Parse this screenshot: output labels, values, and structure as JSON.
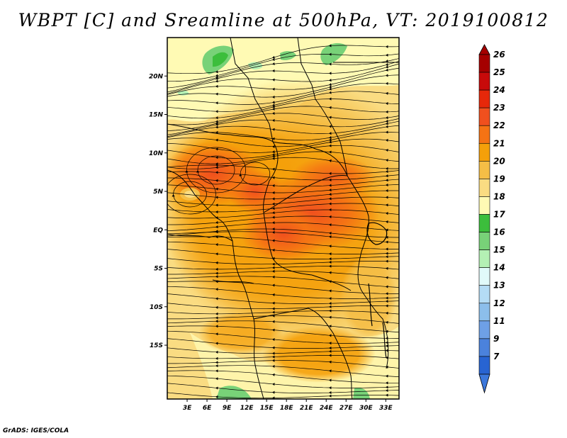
{
  "title": "WBPT [C] and Sreamline at 500hPa, VT: 2019100812",
  "credit": "GrADS: IGES/COLA",
  "map": {
    "lat_range": [
      -22,
      25
    ],
    "lon_range": [
      0,
      35
    ],
    "lat_ticks": [
      {
        "value": 20,
        "label": "20N"
      },
      {
        "value": 15,
        "label": "15N"
      },
      {
        "value": 10,
        "label": "10N"
      },
      {
        "value": 5,
        "label": "5N"
      },
      {
        "value": 0,
        "label": "EQ"
      },
      {
        "value": -5,
        "label": "5S"
      },
      {
        "value": -10,
        "label": "10S"
      },
      {
        "value": -15,
        "label": "15S"
      }
    ],
    "lon_ticks": [
      {
        "value": 3,
        "label": "3E"
      },
      {
        "value": 6,
        "label": "6E"
      },
      {
        "value": 9,
        "label": "9E"
      },
      {
        "value": 12,
        "label": "12E"
      },
      {
        "value": 15,
        "label": "15E"
      },
      {
        "value": 18,
        "label": "18E"
      },
      {
        "value": 21,
        "label": "21E"
      },
      {
        "value": 24,
        "label": "24E"
      },
      {
        "value": 27,
        "label": "27E"
      },
      {
        "value": 30,
        "label": "30E"
      },
      {
        "value": 33,
        "label": "33E"
      }
    ]
  },
  "colorbar": {
    "levels": [
      {
        "label": "26",
        "color": "#a50000"
      },
      {
        "label": "25",
        "color": "#c80a0a"
      },
      {
        "label": "24",
        "color": "#e6280a"
      },
      {
        "label": "23",
        "color": "#f0501e"
      },
      {
        "label": "22",
        "color": "#f57314"
      },
      {
        "label": "21",
        "color": "#f5a00a"
      },
      {
        "label": "20",
        "color": "#f5be46"
      },
      {
        "label": "19",
        "color": "#fadc82"
      },
      {
        "label": "18",
        "color": "#fffab4"
      },
      {
        "label": "17",
        "color": "#3cbe3c"
      },
      {
        "label": "16",
        "color": "#78d278"
      },
      {
        "label": "15",
        "color": "#b4f0b4"
      },
      {
        "label": "14",
        "color": "#e1fafa"
      },
      {
        "label": "13",
        "color": "#b4dcf5"
      },
      {
        "label": "12",
        "color": "#8cbeeb"
      },
      {
        "label": "11",
        "color": "#6ea0e6"
      },
      {
        "label": "9",
        "color": "#4b82dc"
      },
      {
        "label": "7",
        "color": "#2864d2"
      }
    ],
    "bottom_color": "#3c78dc"
  }
}
